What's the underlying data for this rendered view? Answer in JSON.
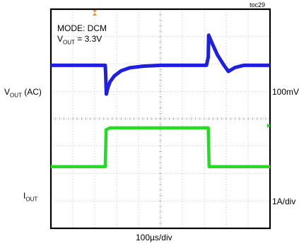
{
  "chart_data": {
    "type": "line",
    "figure_id": "toc29",
    "annotations": {
      "mode": "MODE: DCM",
      "vout_prefix": "V",
      "vout_sub": "OUT",
      "vout_value": " = 3.3V"
    },
    "channels": [
      {
        "label_main": "V",
        "label_sub": "OUT",
        "label_suffix": " (AC)",
        "scale": "100mV/div",
        "color": "#1f1fe0"
      },
      {
        "label_main": "I",
        "label_sub": "OUT",
        "label_suffix": "",
        "scale": "1A/div",
        "color": "#22dd22"
      }
    ],
    "xlabel": "100µs/div",
    "x_divisions": 10,
    "y_divisions": 8,
    "grid": true,
    "time_us": [
      0,
      250,
      270,
      700,
      720,
      1000
    ],
    "trigger_marker_color": "#f28c28",
    "series": [
      {
        "name": "VOUT (AC)",
        "x": [
          0,
          248,
          250,
          253,
          260,
          270,
          290,
          320,
          360,
          420,
          500,
          600,
          710,
          718,
          720,
          735,
          760,
          790,
          810,
          840,
          880,
          940,
          1000
        ],
        "y": [
          0,
          0,
          -0.3,
          -1.05,
          -0.82,
          -0.6,
          -0.38,
          -0.2,
          -0.09,
          -0.03,
          0,
          0,
          0,
          0.3,
          1.1,
          0.82,
          0.38,
          0.0,
          -0.22,
          -0.08,
          0,
          0,
          0
        ]
      },
      {
        "name": "IOUT",
        "x": [
          0,
          248,
          252,
          270,
          718,
          722,
          1000
        ],
        "y": [
          0,
          0,
          1.0,
          1.05,
          1.05,
          0,
          0
        ]
      }
    ],
    "vout_baseline_div": 1.95,
    "vout_div_per_unit": 1.0,
    "iout_baseline_div": -1.75,
    "iout_div_per_unit": 1.35
  }
}
